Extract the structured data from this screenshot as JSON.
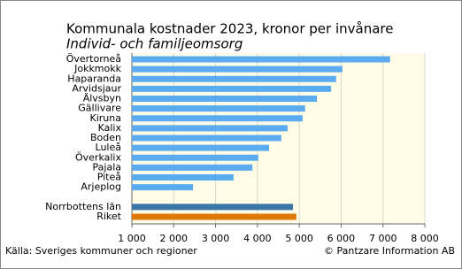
{
  "chart_data": {
    "type": "hbar",
    "title": "Kommunala kostnader 2023, kronor per invånare",
    "subtitle": "Individ- och familjeomsorg",
    "source": "Källa: Sveriges kommuner och regioner",
    "credit": "© Pantzare Information AB",
    "categories": [
      "Övertorneå",
      "Jokkmokk",
      "Haparanda",
      "Arvidsjaur",
      "Älvsbyn",
      "Gällivare",
      "Kiruna",
      "Kalix",
      "Boden",
      "Luleå",
      "Överkalix",
      "Pajala",
      "Piteå",
      "Arjeplog",
      null,
      "Norrbottens län",
      "Riket"
    ],
    "values": [
      7170,
      6030,
      5880,
      5760,
      5420,
      5140,
      5080,
      4720,
      4570,
      4280,
      4020,
      3880,
      3430,
      2460,
      null,
      4850,
      4930
    ],
    "colors": [
      "#5babf0",
      "#5babf0",
      "#5babf0",
      "#5babf0",
      "#5babf0",
      "#5babf0",
      "#5babf0",
      "#5babf0",
      "#5babf0",
      "#5babf0",
      "#5babf0",
      "#5babf0",
      "#5babf0",
      "#5babf0",
      null,
      "#3a77a8",
      "#e07800"
    ],
    "xlim": [
      1000,
      8000
    ],
    "xticks": [
      {
        "value": 1000,
        "label": "1 000"
      },
      {
        "value": 2000,
        "label": "2 000"
      },
      {
        "value": 3000,
        "label": "3 000"
      },
      {
        "value": 4000,
        "label": "4 000"
      },
      {
        "value": 5000,
        "label": "5 000"
      },
      {
        "value": 6000,
        "label": "6 000"
      },
      {
        "value": 7000,
        "label": "7 000"
      },
      {
        "value": 8000,
        "label": "8 000"
      }
    ],
    "grid": true
  }
}
